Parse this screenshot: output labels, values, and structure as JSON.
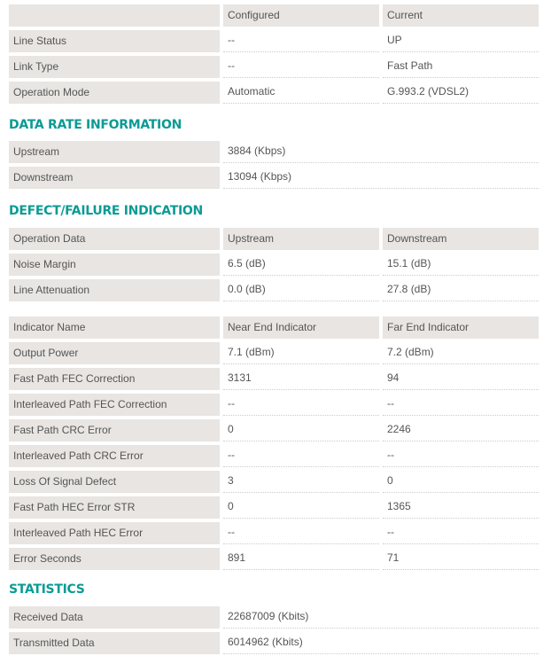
{
  "line": {
    "header": [
      "",
      "Configured",
      "Current"
    ],
    "rows": [
      [
        "Line Status",
        "--",
        "UP"
      ],
      [
        "Link Type",
        "--",
        "Fast Path"
      ],
      [
        "Operation Mode",
        "Automatic",
        "G.993.2 (VDSL2)"
      ]
    ]
  },
  "data_rate": {
    "title": "DATA RATE INFORMATION",
    "rows": [
      [
        "Upstream",
        "3884 (Kbps)"
      ],
      [
        "Downstream",
        "13094 (Kbps)"
      ]
    ]
  },
  "defect": {
    "title": "DEFECT/FAILURE INDICATION",
    "operation": {
      "header": [
        "Operation Data",
        "Upstream",
        "Downstream"
      ],
      "rows": [
        [
          "Noise Margin",
          "6.5 (dB)",
          "15.1 (dB)"
        ],
        [
          "Line Attenuation",
          "0.0 (dB)",
          "27.8 (dB)"
        ]
      ]
    },
    "indicators": {
      "header": [
        "Indicator Name",
        "Near End Indicator",
        "Far End Indicator"
      ],
      "rows": [
        [
          "Output Power",
          "7.1 (dBm)",
          "7.2 (dBm)"
        ],
        [
          "Fast Path FEC Correction",
          "3131",
          "94"
        ],
        [
          "Interleaved Path FEC Correction",
          "--",
          "--"
        ],
        [
          "Fast Path CRC Error",
          "0",
          "2246"
        ],
        [
          "Interleaved Path CRC Error",
          "--",
          "--"
        ],
        [
          "Loss Of Signal Defect",
          "3",
          "0"
        ],
        [
          "Fast Path HEC Error STR",
          "0",
          "1365"
        ],
        [
          "Interleaved Path HEC Error",
          "--",
          "--"
        ],
        [
          "Error Seconds",
          "891",
          "71"
        ]
      ]
    }
  },
  "statistics": {
    "title": "STATISTICS",
    "rows": [
      [
        "Received Data",
        "22687009 (Kbits)"
      ],
      [
        "Transmitted Data",
        "6014962 (Kbits)"
      ]
    ]
  },
  "colors": {
    "accent": "#0b9b94",
    "label_bg": "#e8e5e2"
  }
}
